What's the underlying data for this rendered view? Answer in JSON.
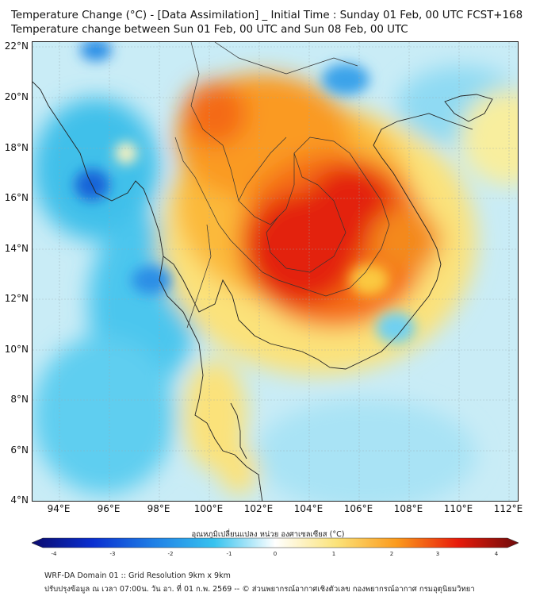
{
  "title_line1": "Temperature Change (°C) - [Data Assimilation] _ Initial Time : Sunday 01 Feb, 00 UTC FCST+168",
  "title_line2": "Temperature change between Sun 01 Feb, 00 UTC and Sun 08 Feb, 00 UTC",
  "y_ticks": [
    "22°N",
    "20°N",
    "18°N",
    "16°N",
    "14°N",
    "12°N",
    "10°N",
    "8°N",
    "6°N",
    "4°N"
  ],
  "x_ticks": [
    "94°E",
    "96°E",
    "98°E",
    "100°E",
    "102°E",
    "104°E",
    "106°E",
    "108°E",
    "110°E",
    "112°E"
  ],
  "colorbar": {
    "label": "อุณหภูมิเปลี่ยนแปลง หน่วย องศาเซลเซียส (°C)",
    "ticks": [
      "-4",
      "-3",
      "-2",
      "-1",
      "0",
      "1",
      "2",
      "3",
      "4"
    ],
    "range": [
      -4,
      4
    ],
    "colors": [
      "#0b0b6e",
      "#0a2fd0",
      "#1f7fe6",
      "#37c3ef",
      "#ffffff",
      "#fbe37a",
      "#fb9a1c",
      "#e81b0b",
      "#6e0b0b"
    ]
  },
  "footer_line1": "WRF-DA Domain 01 :: Grid Resolution 9km x 9km",
  "footer_line2": "ปรับปรุงข้อมูล ณ เวลา 07:00น. วัน อา. ที่ 01 ก.พ. 2569 -- © ส่วนพยากรณ์อากาศเชิงตัวเลข กองพยากรณ์อากาศ กรมอุตุนิยมวิทยา"
}
